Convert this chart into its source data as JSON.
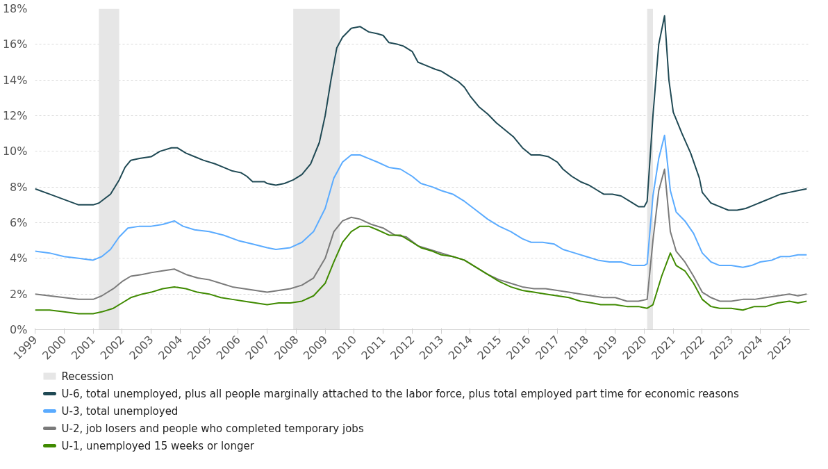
{
  "chart_data": {
    "type": "line",
    "xlim": [
      1999,
      2025.7
    ],
    "xticks": [
      1999,
      2000,
      2001,
      2002,
      2003,
      2004,
      2005,
      2006,
      2007,
      2008,
      2009,
      2010,
      2011,
      2012,
      2013,
      2014,
      2015,
      2016,
      2017,
      2018,
      2019,
      2020,
      2021,
      2022,
      2023,
      2024,
      2025
    ],
    "ylim": [
      0,
      18
    ],
    "yticks": [
      {
        "value": 0,
        "label": "0%"
      },
      {
        "value": 2,
        "label": "2%"
      },
      {
        "value": 4,
        "label": "4%"
      },
      {
        "value": 6,
        "label": "6%"
      },
      {
        "value": 8,
        "label": "8%"
      },
      {
        "value": 10,
        "label": "10%"
      },
      {
        "value": 12,
        "label": "12%"
      },
      {
        "value": 14,
        "label": "14%"
      },
      {
        "value": 16,
        "label": "16%"
      },
      {
        "value": 18,
        "label": "18%"
      }
    ],
    "grid": "y",
    "legend": "bottom",
    "line_style": "solid",
    "bands": [
      {
        "axis": "x",
        "from": 2001.2,
        "to": 2001.9,
        "label": "Recession",
        "color": "#e6e6e6"
      },
      {
        "axis": "x",
        "from": 2007.9,
        "to": 2009.5,
        "color": "#e6e6e6"
      },
      {
        "axis": "x",
        "from": 2020.1,
        "to": 2020.3,
        "color": "#e6e6e6"
      }
    ],
    "series": [
      {
        "name": "U-6, total unemployed, plus all people marginally attached to the labor force, plus total employed part time for economic reasons",
        "color": "#1f4954",
        "x": [
          1999.0,
          1999.5,
          2000.0,
          2000.5,
          2001.0,
          2001.2,
          2001.6,
          2001.9,
          2002.1,
          2002.3,
          2002.6,
          2003.0,
          2003.3,
          2003.7,
          2003.9,
          2004.2,
          2004.5,
          2004.8,
          2005.2,
          2005.5,
          2005.8,
          2006.1,
          2006.3,
          2006.5,
          2006.9,
          2007.0,
          2007.3,
          2007.6,
          2007.9,
          2008.2,
          2008.5,
          2008.8,
          2009.0,
          2009.2,
          2009.4,
          2009.6,
          2009.9,
          2010.2,
          2010.5,
          2010.8,
          2011.0,
          2011.2,
          2011.5,
          2011.7,
          2012.0,
          2012.2,
          2012.5,
          2012.8,
          2013.0,
          2013.3,
          2013.6,
          2013.8,
          2014.0,
          2014.3,
          2014.6,
          2014.9,
          2015.2,
          2015.5,
          2015.8,
          2016.1,
          2016.4,
          2016.7,
          2017.0,
          2017.2,
          2017.5,
          2017.8,
          2018.1,
          2018.3,
          2018.6,
          2018.9,
          2019.2,
          2019.5,
          2019.8,
          2020.0,
          2020.1,
          2020.3,
          2020.5,
          2020.7,
          2020.85,
          2021.0,
          2021.3,
          2021.6,
          2021.9,
          2022.0,
          2022.3,
          2022.6,
          2022.9,
          2023.2,
          2023.5,
          2023.8,
          2024.1,
          2024.4,
          2024.7,
          2025.0,
          2025.3,
          2025.6
        ],
        "values": [
          7.9,
          7.6,
          7.3,
          7.0,
          7.0,
          7.1,
          7.6,
          8.4,
          9.1,
          9.5,
          9.6,
          9.7,
          10.0,
          10.2,
          10.2,
          9.9,
          9.7,
          9.5,
          9.3,
          9.1,
          8.9,
          8.8,
          8.6,
          8.3,
          8.3,
          8.2,
          8.1,
          8.2,
          8.4,
          8.7,
          9.3,
          10.5,
          12.0,
          14.0,
          15.8,
          16.4,
          16.9,
          17.0,
          16.7,
          16.6,
          16.5,
          16.1,
          16.0,
          15.9,
          15.6,
          15.0,
          14.8,
          14.6,
          14.5,
          14.2,
          13.9,
          13.6,
          13.1,
          12.5,
          12.1,
          11.6,
          11.2,
          10.8,
          10.2,
          9.8,
          9.8,
          9.7,
          9.4,
          9.0,
          8.6,
          8.3,
          8.1,
          7.9,
          7.6,
          7.6,
          7.5,
          7.2,
          6.9,
          6.9,
          7.2,
          12.0,
          16.0,
          17.6,
          14.0,
          12.2,
          11.0,
          9.9,
          8.5,
          7.7,
          7.1,
          6.9,
          6.7,
          6.7,
          6.8,
          7.0,
          7.2,
          7.4,
          7.6,
          7.7,
          7.8,
          7.9
        ]
      },
      {
        "name": "U-3, total unemployed",
        "color": "#5aabff",
        "x": [
          1999.0,
          1999.5,
          2000.0,
          2000.5,
          2001.0,
          2001.3,
          2001.6,
          2001.9,
          2002.2,
          2002.6,
          2003.0,
          2003.4,
          2003.8,
          2004.1,
          2004.5,
          2005.0,
          2005.5,
          2006.0,
          2006.5,
          2007.0,
          2007.3,
          2007.8,
          2008.2,
          2008.6,
          2009.0,
          2009.3,
          2009.6,
          2009.9,
          2010.2,
          2010.5,
          2010.8,
          2011.2,
          2011.6,
          2012.0,
          2012.3,
          2012.7,
          2013.0,
          2013.4,
          2013.8,
          2014.2,
          2014.6,
          2015.0,
          2015.4,
          2015.8,
          2016.1,
          2016.5,
          2016.9,
          2017.2,
          2017.6,
          2018.0,
          2018.4,
          2018.8,
          2019.2,
          2019.6,
          2020.0,
          2020.1,
          2020.3,
          2020.5,
          2020.7,
          2020.9,
          2021.1,
          2021.4,
          2021.7,
          2022.0,
          2022.3,
          2022.6,
          2023.0,
          2023.4,
          2023.7,
          2024.0,
          2024.4,
          2024.7,
          2025.0,
          2025.3,
          2025.6
        ],
        "values": [
          4.4,
          4.3,
          4.1,
          4.0,
          3.9,
          4.1,
          4.5,
          5.2,
          5.7,
          5.8,
          5.8,
          5.9,
          6.1,
          5.8,
          5.6,
          5.5,
          5.3,
          5.0,
          4.8,
          4.6,
          4.5,
          4.6,
          4.9,
          5.5,
          6.8,
          8.5,
          9.4,
          9.8,
          9.8,
          9.6,
          9.4,
          9.1,
          9.0,
          8.6,
          8.2,
          8.0,
          7.8,
          7.6,
          7.2,
          6.7,
          6.2,
          5.8,
          5.5,
          5.1,
          4.9,
          4.9,
          4.8,
          4.5,
          4.3,
          4.1,
          3.9,
          3.8,
          3.8,
          3.6,
          3.6,
          3.7,
          7.5,
          9.6,
          10.9,
          7.8,
          6.6,
          6.1,
          5.4,
          4.3,
          3.8,
          3.6,
          3.6,
          3.5,
          3.6,
          3.8,
          3.9,
          4.1,
          4.1,
          4.2,
          4.2
        ]
      },
      {
        "name": "U-2, job losers and people who completed temporary jobs",
        "color": "#7a7a7a",
        "x": [
          1999.0,
          1999.5,
          2000.0,
          2000.5,
          2001.0,
          2001.3,
          2001.7,
          2002.0,
          2002.3,
          2002.7,
          2003.0,
          2003.4,
          2003.8,
          2004.2,
          2004.6,
          2005.0,
          2005.4,
          2005.8,
          2006.2,
          2006.6,
          2007.0,
          2007.4,
          2007.8,
          2008.2,
          2008.6,
          2009.0,
          2009.3,
          2009.6,
          2009.9,
          2010.2,
          2010.6,
          2011.0,
          2011.4,
          2011.8,
          2012.2,
          2012.6,
          2013.0,
          2013.4,
          2013.8,
          2014.2,
          2014.6,
          2015.0,
          2015.4,
          2015.8,
          2016.2,
          2016.6,
          2017.0,
          2017.4,
          2017.8,
          2018.2,
          2018.6,
          2019.0,
          2019.4,
          2019.8,
          2020.1,
          2020.3,
          2020.5,
          2020.7,
          2020.9,
          2021.1,
          2021.4,
          2021.7,
          2022.0,
          2022.3,
          2022.6,
          2023.0,
          2023.4,
          2023.8,
          2024.2,
          2024.6,
          2025.0,
          2025.3,
          2025.6
        ],
        "values": [
          2.0,
          1.9,
          1.8,
          1.7,
          1.7,
          1.9,
          2.3,
          2.7,
          3.0,
          3.1,
          3.2,
          3.3,
          3.4,
          3.1,
          2.9,
          2.8,
          2.6,
          2.4,
          2.3,
          2.2,
          2.1,
          2.2,
          2.3,
          2.5,
          2.9,
          4.0,
          5.5,
          6.1,
          6.3,
          6.2,
          5.9,
          5.7,
          5.3,
          5.2,
          4.7,
          4.5,
          4.3,
          4.1,
          3.9,
          3.5,
          3.1,
          2.8,
          2.6,
          2.4,
          2.3,
          2.3,
          2.2,
          2.1,
          2.0,
          1.9,
          1.8,
          1.8,
          1.6,
          1.6,
          1.7,
          5.0,
          7.8,
          9.0,
          5.5,
          4.4,
          3.8,
          3.0,
          2.1,
          1.8,
          1.6,
          1.6,
          1.7,
          1.7,
          1.8,
          1.9,
          2.0,
          1.9,
          2.0
        ]
      },
      {
        "name": "U-1, unemployed 15 weeks or longer",
        "color": "#3f8a00",
        "x": [
          1999.0,
          1999.5,
          2000.0,
          2000.5,
          2001.0,
          2001.3,
          2001.7,
          2002.0,
          2002.3,
          2002.7,
          2003.0,
          2003.4,
          2003.8,
          2004.2,
          2004.6,
          2005.0,
          2005.4,
          2005.8,
          2006.2,
          2006.6,
          2007.0,
          2007.4,
          2007.8,
          2008.2,
          2008.6,
          2009.0,
          2009.3,
          2009.6,
          2009.9,
          2010.2,
          2010.5,
          2010.8,
          2011.2,
          2011.6,
          2012.0,
          2012.3,
          2012.7,
          2013.0,
          2013.4,
          2013.8,
          2014.2,
          2014.6,
          2015.0,
          2015.4,
          2015.8,
          2016.2,
          2016.6,
          2017.0,
          2017.4,
          2017.8,
          2018.2,
          2018.5,
          2019.0,
          2019.4,
          2019.8,
          2020.1,
          2020.3,
          2020.6,
          2020.9,
          2021.1,
          2021.4,
          2021.7,
          2022.0,
          2022.3,
          2022.6,
          2023.0,
          2023.4,
          2023.8,
          2024.2,
          2024.6,
          2025.0,
          2025.3,
          2025.6
        ],
        "values": [
          1.1,
          1.1,
          1.0,
          0.9,
          0.9,
          1.0,
          1.2,
          1.5,
          1.8,
          2.0,
          2.1,
          2.3,
          2.4,
          2.3,
          2.1,
          2.0,
          1.8,
          1.7,
          1.6,
          1.5,
          1.4,
          1.5,
          1.5,
          1.6,
          1.9,
          2.6,
          3.8,
          4.9,
          5.5,
          5.8,
          5.8,
          5.6,
          5.3,
          5.3,
          4.9,
          4.6,
          4.4,
          4.2,
          4.1,
          3.9,
          3.5,
          3.1,
          2.7,
          2.4,
          2.2,
          2.1,
          2.0,
          1.9,
          1.8,
          1.6,
          1.5,
          1.4,
          1.4,
          1.3,
          1.3,
          1.2,
          1.4,
          3.0,
          4.3,
          3.6,
          3.3,
          2.6,
          1.7,
          1.3,
          1.2,
          1.2,
          1.1,
          1.3,
          1.3,
          1.5,
          1.6,
          1.5,
          1.6
        ]
      }
    ]
  }
}
